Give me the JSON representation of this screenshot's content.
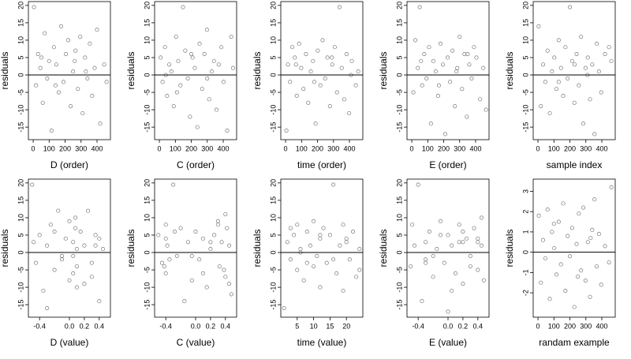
{
  "chart_data": [
    {
      "type": "scatter",
      "xlabel": "D (order)",
      "ylabel": "residuals",
      "color": "#555555",
      "hline": 0,
      "xlim": [
        -30,
        484
      ],
      "ylim": [
        -18.6,
        21.1
      ],
      "xticks": [
        0,
        100,
        200,
        300,
        400
      ],
      "yticks": [
        -15,
        -10,
        -5,
        0,
        5,
        10,
        15,
        20
      ],
      "x": [
        5,
        18,
        30,
        45,
        60,
        72,
        88,
        100,
        115,
        130,
        145,
        160,
        175,
        190,
        205,
        220,
        235,
        250,
        265,
        280,
        295,
        310,
        325,
        340,
        355,
        370,
        385,
        400,
        420,
        445,
        460,
        52,
        140,
        260,
        330
      ],
      "y": [
        19.5,
        -3,
        6,
        2,
        -8,
        12,
        -1,
        4,
        -16,
        8,
        3,
        -5,
        14,
        -2,
        6,
        10,
        -9,
        1,
        7,
        -4,
        11,
        -11,
        5,
        -1,
        9,
        -6,
        2,
        13,
        -14,
        3,
        -2,
        5,
        -3,
        4,
        1
      ]
    },
    {
      "type": "scatter",
      "xlabel": "C (order)",
      "ylabel": "residuals",
      "color": "#555555",
      "hline": 0,
      "xlim": [
        -30,
        484
      ],
      "ylim": [
        -18.6,
        21.1
      ],
      "xticks": [
        0,
        100,
        200,
        300,
        400
      ],
      "yticks": [
        -15,
        -10,
        -5,
        0,
        5,
        10,
        15,
        20
      ],
      "x": [
        8,
        20,
        35,
        48,
        62,
        75,
        90,
        105,
        118,
        132,
        148,
        162,
        178,
        192,
        208,
        222,
        238,
        252,
        268,
        282,
        298,
        312,
        328,
        342,
        358,
        372,
        388,
        402,
        425,
        450,
        462,
        110,
        200,
        300,
        40
      ],
      "y": [
        5,
        -2,
        8,
        -6,
        3,
        1,
        -9,
        11,
        4,
        -3,
        19.5,
        7,
        -1,
        -12,
        5,
        2,
        -15,
        9,
        -4,
        6,
        13,
        -7,
        1,
        4,
        -10,
        3,
        8,
        -2,
        -16,
        11,
        2,
        -5,
        6,
        -1,
        0
      ]
    },
    {
      "type": "scatter",
      "xlabel": "time (order)",
      "ylabel": "residuals",
      "color": "#555555",
      "hline": 0,
      "xlim": [
        -30,
        484
      ],
      "ylim": [
        -18.6,
        21.1
      ],
      "xticks": [
        0,
        100,
        200,
        300,
        400
      ],
      "yticks": [
        -15,
        -10,
        -5,
        0,
        5,
        10,
        15,
        20
      ],
      "x": [
        5,
        15,
        28,
        42,
        58,
        70,
        85,
        98,
        112,
        128,
        142,
        158,
        172,
        188,
        202,
        218,
        232,
        248,
        262,
        278,
        292,
        308,
        322,
        338,
        352,
        368,
        382,
        398,
        415,
        440,
        455,
        65,
        180,
        290,
        410
      ],
      "y": [
        -16,
        3,
        -2,
        8,
        5,
        -6,
        9,
        2,
        -4,
        6,
        -8,
        1,
        4,
        -14,
        7,
        -3,
        10,
        -1,
        5,
        -9,
        3,
        8,
        -5,
        19.5,
        2,
        -7,
        6,
        -11,
        4,
        -3,
        1,
        3,
        -2,
        5,
        0
      ]
    },
    {
      "type": "scatter",
      "xlabel": "E (order)",
      "ylabel": "residuals",
      "color": "#555555",
      "hline": 0,
      "xlim": [
        -30,
        484
      ],
      "ylim": [
        -18.6,
        21.1
      ],
      "xticks": [
        0,
        100,
        200,
        300,
        400
      ],
      "yticks": [
        -15,
        -10,
        -5,
        0,
        5,
        10,
        15,
        20
      ],
      "x": [
        10,
        22,
        38,
        50,
        65,
        78,
        92,
        108,
        120,
        135,
        150,
        165,
        180,
        195,
        210,
        225,
        240,
        255,
        270,
        285,
        300,
        315,
        330,
        345,
        360,
        375,
        390,
        405,
        428,
        448,
        465,
        58,
        170,
        280,
        350
      ],
      "y": [
        -5,
        10,
        2,
        19.5,
        -3,
        6,
        -1,
        8,
        -14,
        4,
        1,
        -6,
        9,
        3,
        -17,
        5,
        -2,
        7,
        -9,
        2,
        11,
        -4,
        6,
        -12,
        3,
        -1,
        8,
        5,
        -7,
        2,
        -10,
        4,
        -3,
        1,
        6
      ]
    },
    {
      "type": "scatter",
      "xlabel": "sample index",
      "ylabel": "residuals",
      "color": "#555555",
      "hline": 0,
      "xlim": [
        -30,
        484
      ],
      "ylim": [
        -18.6,
        21.1
      ],
      "xticks": [
        0,
        100,
        200,
        300,
        400
      ],
      "yticks": [
        -15,
        -10,
        -5,
        0,
        5,
        10,
        15,
        20
      ],
      "x": [
        4,
        18,
        32,
        46,
        60,
        74,
        88,
        102,
        116,
        130,
        144,
        158,
        172,
        186,
        200,
        214,
        228,
        242,
        256,
        270,
        284,
        298,
        312,
        326,
        340,
        354,
        368,
        382,
        396,
        420,
        445,
        130,
        230,
        310,
        460
      ],
      "y": [
        14,
        -9,
        3,
        -2,
        7,
        -11,
        1,
        5,
        -4,
        10,
        2,
        -6,
        8,
        -1,
        19.5,
        4,
        -8,
        6,
        -3,
        11,
        -14,
        2,
        5,
        -7,
        3,
        -17,
        9,
        1,
        -5,
        6,
        8,
        -2,
        3,
        0,
        4
      ]
    },
    {
      "type": "scatter",
      "xlabel": "D (value)",
      "ylabel": "residuals",
      "color": "#555555",
      "hline": 0,
      "xlim": [
        -0.55,
        0.55
      ],
      "ylim": [
        -18.6,
        21.1
      ],
      "xticks": [
        -0.4,
        {
          "value": 0,
          "label": "0.0"
        },
        0.2,
        0.4
      ],
      "yticks": [
        -15,
        -10,
        -5,
        0,
        5,
        10,
        15,
        20
      ],
      "x": [
        -0.5,
        -0.45,
        -0.4,
        -0.35,
        -0.3,
        -0.25,
        -0.2,
        -0.15,
        -0.1,
        -0.05,
        0,
        0,
        0.05,
        0.05,
        0.08,
        0.1,
        0.1,
        0.15,
        0.2,
        0.2,
        0.25,
        0.3,
        0.35,
        0.4,
        0.45,
        -0.48,
        -0.3,
        -0.1,
        0.08,
        0.3,
        0.4,
        -0.2,
        0.1,
        0.35,
        0.05
      ],
      "y": [
        19.5,
        -3,
        5,
        -11,
        2,
        8,
        -5,
        12,
        -2,
        4,
        -8,
        9,
        3,
        -6,
        10,
        1,
        -4,
        6,
        -9,
        2,
        12,
        -3,
        5,
        -14,
        1,
        3,
        -16,
        -1,
        7,
        -7,
        4,
        6,
        -10,
        2,
        -1
      ]
    },
    {
      "type": "scatter",
      "xlabel": "C (value)",
      "ylabel": "residuals",
      "color": "#555555",
      "hline": 0,
      "xlim": [
        -0.55,
        0.55
      ],
      "ylim": [
        -18.6,
        21.1
      ],
      "xticks": [
        -0.4,
        {
          "value": 0,
          "label": "0.0"
        },
        0.2,
        0.4
      ],
      "yticks": [
        -15,
        -10,
        -5,
        0,
        5,
        10,
        15,
        20
      ],
      "x": [
        -0.5,
        -0.45,
        -0.4,
        -0.4,
        -0.38,
        -0.3,
        -0.25,
        -0.2,
        -0.15,
        -0.1,
        -0.05,
        0,
        0.05,
        0.1,
        0.15,
        0.2,
        0.25,
        0.3,
        0.32,
        0.35,
        0.4,
        0.4,
        0.45,
        0.48,
        -0.42,
        -0.4,
        -0.28,
        -0.05,
        0.2,
        0.38,
        0.42,
        -0.35,
        0.1,
        0.3,
        0.45
      ],
      "y": [
        5,
        -3,
        8,
        -6,
        2,
        19.5,
        -1,
        7,
        -14,
        3,
        -8,
        6,
        -2,
        4,
        -10,
        1,
        5,
        9,
        -4,
        3,
        11,
        -7,
        2,
        -12,
        -4,
        4,
        6,
        -1,
        3,
        -5,
        7,
        -2,
        -6,
        8,
        -9
      ]
    },
    {
      "type": "scatter",
      "xlabel": "time (value)",
      "ylabel": "residuals",
      "color": "#555555",
      "hline": 0,
      "xlim": [
        0,
        25
      ],
      "ylim": [
        -18.6,
        21.1
      ],
      "xticks": [
        5,
        10,
        15,
        20
      ],
      "yticks": [
        -15,
        -10,
        -5,
        0,
        5,
        10,
        15,
        20
      ],
      "x": [
        1,
        2,
        3,
        4,
        5,
        5,
        6,
        7,
        8,
        9,
        10,
        10,
        11,
        12,
        12,
        13,
        14,
        15,
        16,
        17,
        18,
        19,
        19,
        20,
        21,
        22,
        23,
        24,
        3,
        8,
        12,
        16,
        20,
        24,
        6
      ],
      "y": [
        -16,
        3,
        -2,
        5,
        8,
        -5,
        1,
        -8,
        6,
        2,
        -4,
        9,
        -1,
        4,
        -10,
        7,
        -3,
        5,
        19.5,
        -6,
        2,
        8,
        -11,
        3,
        -2,
        6,
        -7,
        1,
        7,
        -3,
        5,
        -2,
        4,
        -5,
        0
      ]
    },
    {
      "type": "scatter",
      "xlabel": "E (value)",
      "ylabel": "residuals",
      "color": "#555555",
      "hline": 0,
      "xlim": [
        -0.55,
        0.55
      ],
      "ylim": [
        -18.6,
        21.1
      ],
      "xticks": [
        -0.4,
        {
          "value": 0,
          "label": "0.0"
        },
        0.2,
        0.4
      ],
      "yticks": [
        -15,
        -10,
        -5,
        0,
        5,
        10,
        15,
        20
      ],
      "x": [
        -0.5,
        -0.48,
        -0.4,
        -0.35,
        -0.3,
        -0.3,
        -0.25,
        -0.2,
        -0.15,
        -0.1,
        -0.05,
        0,
        0,
        0.05,
        0.1,
        0.15,
        0.2,
        0.2,
        0.25,
        0.3,
        0.35,
        0.4,
        0.4,
        0.45,
        0.48,
        -0.45,
        -0.3,
        -0.1,
        0.05,
        0.2,
        0.4,
        -0.2,
        0.15,
        0.3,
        0.45
      ],
      "y": [
        -4,
        8,
        19.5,
        -14,
        3,
        -2,
        6,
        -7,
        1,
        9,
        -3,
        5,
        -17,
        2,
        -6,
        8,
        3,
        -9,
        4,
        -1,
        7,
        3,
        -5,
        10,
        -8,
        2,
        -3,
        5,
        -11,
        6,
        4,
        -1,
        3,
        -4,
        2
      ]
    },
    {
      "type": "scatter",
      "xlabel": "randam example",
      "ylabel": "residuals",
      "color": "#555555",
      "hline": 0,
      "xlim": [
        -30,
        484
      ],
      "ylim": [
        -3.2,
        3.6
      ],
      "xticks": [
        0,
        100,
        200,
        300,
        400
      ],
      "yticks": [
        -2,
        -1,
        0,
        1,
        2,
        3
      ],
      "x": [
        5,
        18,
        32,
        46,
        60,
        74,
        88,
        102,
        116,
        130,
        144,
        158,
        172,
        186,
        200,
        214,
        228,
        242,
        256,
        270,
        284,
        298,
        312,
        326,
        340,
        354,
        368,
        382,
        396,
        420,
        445,
        460,
        100,
        250,
        330
      ],
      "y": [
        1.8,
        -1.5,
        0.6,
        -0.3,
        2.1,
        -2.3,
        1,
        0.2,
        -1.1,
        1.5,
        -0.6,
        2.4,
        -1.9,
        0.8,
        -0.2,
        1.2,
        -2.7,
        0.4,
        1.9,
        -0.9,
        2.2,
        -1.4,
        0.5,
        -2.2,
        1.1,
        2.6,
        -0.7,
        0.9,
        -1.6,
        0.3,
        -0.5,
        3.2,
        1.4,
        -1.2,
        0.7
      ]
    }
  ]
}
